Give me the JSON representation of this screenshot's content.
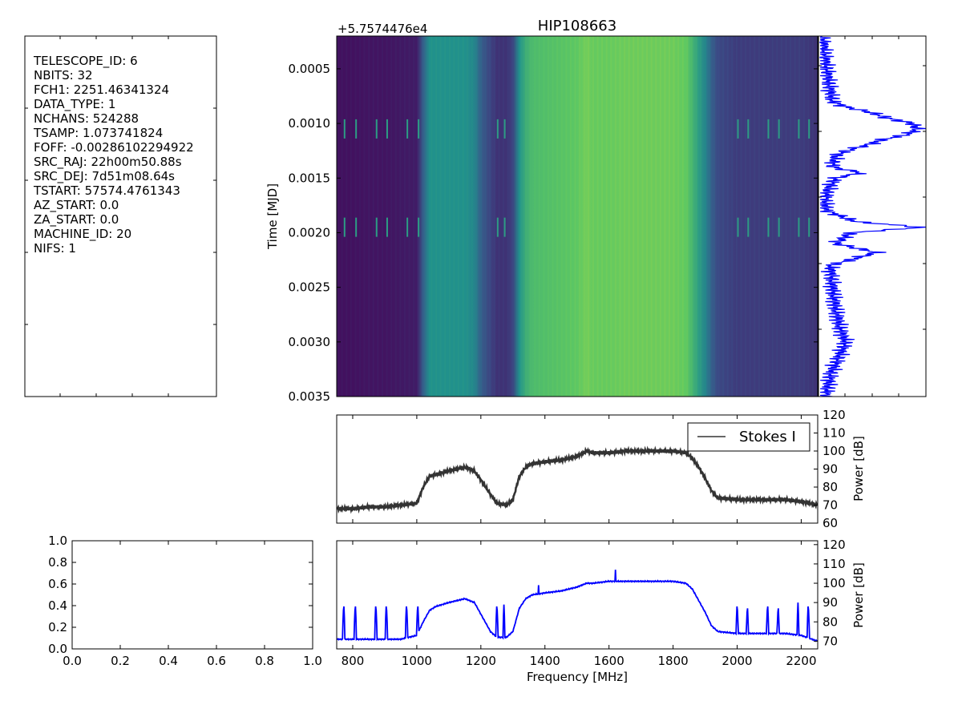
{
  "header_panel": {
    "lines": [
      "TELESCOPE_ID:  6",
      "NBITS:  32",
      "FCH1:  2251.46341324",
      "DATA_TYPE:  1",
      "NCHANS:  524288",
      "TSAMP:  1.073741824",
      "FOFF:  -0.00286102294922",
      "SRC_RAJ:  22h00m50.88s",
      "SRC_DEJ:  7d51m08.64s",
      "TSTART:  57574.4761343",
      "AZ_START:  0.0",
      "ZA_START:  0.0",
      "MACHINE_ID:  20",
      "NIFS:  1"
    ]
  },
  "chart_data": [
    {
      "id": "waterfall",
      "type": "heatmap",
      "title": "HIP108663",
      "ylabel": "Time [MJD]",
      "offset_label": "+5.7574476e4",
      "xlim": [
        750,
        2251.46
      ],
      "ylim": [
        0.0035,
        0.0002
      ],
      "yticks": [
        "0.0005",
        "0.0010",
        "0.0015",
        "0.0020",
        "0.0025",
        "0.0030",
        "0.0035"
      ],
      "ytick_values": [
        0.0005,
        0.001,
        0.0015,
        0.002,
        0.0025,
        0.003,
        0.0035
      ],
      "colormap": "viridis",
      "intensity_profile": {
        "freq": [
          750,
          800,
          850,
          900,
          950,
          1000,
          1020,
          1040,
          1060,
          1080,
          1100,
          1150,
          1180,
          1200,
          1230,
          1250,
          1280,
          1300,
          1320,
          1340,
          1360,
          1400,
          1450,
          1500,
          1530,
          1550,
          1600,
          1650,
          1700,
          1750,
          1800,
          1840,
          1860,
          1880,
          1900,
          1920,
          1940,
          2000,
          2050,
          2100,
          2150,
          2200,
          2251
        ],
        "level": [
          0.05,
          0.05,
          0.06,
          0.06,
          0.07,
          0.08,
          0.3,
          0.5,
          0.5,
          0.5,
          0.5,
          0.5,
          0.45,
          0.3,
          0.2,
          0.15,
          0.15,
          0.2,
          0.5,
          0.62,
          0.68,
          0.7,
          0.72,
          0.74,
          0.78,
          0.76,
          0.76,
          0.77,
          0.77,
          0.77,
          0.77,
          0.75,
          0.65,
          0.55,
          0.45,
          0.3,
          0.22,
          0.18,
          0.18,
          0.18,
          0.18,
          0.18,
          0.15
        ]
      },
      "bright_rows": [
        0.00105,
        0.00195
      ]
    },
    {
      "id": "time-profile",
      "type": "line",
      "color": "#0000ff",
      "t": [
        0.0002,
        0.0004,
        0.0006,
        0.0008,
        0.00085,
        0.0009,
        0.00095,
        0.001,
        0.00105,
        0.0011,
        0.00115,
        0.0012,
        0.00125,
        0.0013,
        0.0014,
        0.00145,
        0.0015,
        0.0016,
        0.0017,
        0.0018,
        0.0019,
        0.00195,
        0.002,
        0.0021,
        0.00218,
        0.0023,
        0.0025,
        0.0027,
        0.0029,
        0.003,
        0.0031,
        0.0032,
        0.0033,
        0.0034,
        0.0035
      ],
      "v": [
        0.02,
        0.05,
        0.08,
        0.12,
        0.25,
        0.5,
        0.65,
        0.9,
        0.95,
        0.85,
        0.6,
        0.45,
        0.25,
        0.15,
        0.12,
        0.4,
        0.15,
        0.08,
        0.05,
        0.06,
        0.35,
        1.0,
        0.3,
        0.15,
        0.55,
        0.1,
        0.12,
        0.15,
        0.2,
        0.25,
        0.2,
        0.15,
        0.1,
        0.08,
        0.05
      ]
    },
    {
      "id": "spectrum-stokes",
      "type": "line",
      "ylabel": "Power [dB]",
      "ylim": [
        60,
        120
      ],
      "yticks": [
        "60",
        "70",
        "80",
        "90",
        "100",
        "110",
        "120"
      ],
      "ytick_values": [
        60,
        70,
        80,
        90,
        100,
        110,
        120
      ],
      "xlim": [
        750,
        2251.46
      ],
      "legend": "Stokes I",
      "legend_position": "top-right",
      "color": "#333333",
      "x": [
        750,
        800,
        850,
        900,
        950,
        1000,
        1020,
        1040,
        1060,
        1080,
        1100,
        1150,
        1180,
        1200,
        1230,
        1250,
        1280,
        1300,
        1320,
        1340,
        1360,
        1400,
        1450,
        1500,
        1530,
        1550,
        1600,
        1650,
        1700,
        1750,
        1800,
        1840,
        1860,
        1880,
        1900,
        1920,
        1940,
        2000,
        2050,
        2100,
        2150,
        2200,
        2251
      ],
      "y": [
        68,
        68,
        69,
        69,
        70,
        71,
        80,
        86,
        87,
        88,
        89,
        91,
        89,
        84,
        76,
        71,
        70,
        73,
        86,
        91,
        93,
        94,
        95,
        97,
        100,
        99,
        99,
        100,
        100,
        100,
        100,
        99,
        96,
        91,
        85,
        78,
        74,
        73,
        73,
        73,
        73,
        72,
        70
      ]
    },
    {
      "id": "empty-axes",
      "type": "line",
      "xlim": [
        0,
        1
      ],
      "ylim": [
        0,
        1
      ],
      "xticks": [
        "0.0",
        "0.2",
        "0.4",
        "0.6",
        "0.8",
        "1.0"
      ],
      "xtick_values": [
        0,
        0.2,
        0.4,
        0.6,
        0.8,
        1.0
      ],
      "yticks": [
        "0.0",
        "0.2",
        "0.4",
        "0.6",
        "0.8",
        "1.0"
      ],
      "ytick_values": [
        0,
        0.2,
        0.4,
        0.6,
        0.8,
        1.0
      ]
    },
    {
      "id": "spectrum-mean",
      "type": "line",
      "xlabel": "Frequency [MHz]",
      "ylabel": "Power [dB]",
      "xlim": [
        750,
        2251.46
      ],
      "ylim": [
        66,
        122
      ],
      "xticks": [
        "800",
        "1000",
        "1200",
        "1400",
        "1600",
        "1800",
        "2000",
        "2200"
      ],
      "xtick_values": [
        800,
        1000,
        1200,
        1400,
        1600,
        1800,
        2000,
        2200
      ],
      "yticks": [
        "70",
        "80",
        "90",
        "100",
        "110",
        "120"
      ],
      "ytick_values": [
        70,
        80,
        90,
        100,
        110,
        120
      ],
      "color": "#0000ff",
      "x": [
        750,
        800,
        850,
        900,
        950,
        1000,
        1020,
        1040,
        1060,
        1080,
        1100,
        1150,
        1180,
        1200,
        1230,
        1250,
        1280,
        1300,
        1320,
        1340,
        1360,
        1400,
        1450,
        1500,
        1530,
        1550,
        1600,
        1650,
        1700,
        1750,
        1800,
        1840,
        1860,
        1880,
        1900,
        1920,
        1940,
        2000,
        2050,
        2100,
        2150,
        2200,
        2251
      ],
      "y": [
        71,
        71,
        71,
        71,
        71,
        73,
        80,
        86,
        88,
        89,
        90,
        92,
        90,
        84,
        75,
        72,
        72,
        75,
        87,
        92,
        94,
        95,
        96,
        98,
        100,
        100,
        101,
        101,
        101,
        101,
        101,
        100,
        97,
        91,
        85,
        78,
        75,
        74,
        74,
        74,
        74,
        73,
        70
      ],
      "spikes": [
        {
          "x": 772,
          "peak": 90
        },
        {
          "x": 808,
          "peak": 90
        },
        {
          "x": 872,
          "peak": 90
        },
        {
          "x": 905,
          "peak": 90
        },
        {
          "x": 968,
          "peak": 90
        },
        {
          "x": 1003,
          "peak": 90
        },
        {
          "x": 1250,
          "peak": 90
        },
        {
          "x": 1272,
          "peak": 89
        },
        {
          "x": 1380,
          "peak": 99
        },
        {
          "x": 1620,
          "peak": 107
        },
        {
          "x": 2000,
          "peak": 90
        },
        {
          "x": 2032,
          "peak": 89
        },
        {
          "x": 2095,
          "peak": 90
        },
        {
          "x": 2128,
          "peak": 89
        },
        {
          "x": 2190,
          "peak": 90
        },
        {
          "x": 2222,
          "peak": 90
        }
      ]
    }
  ]
}
